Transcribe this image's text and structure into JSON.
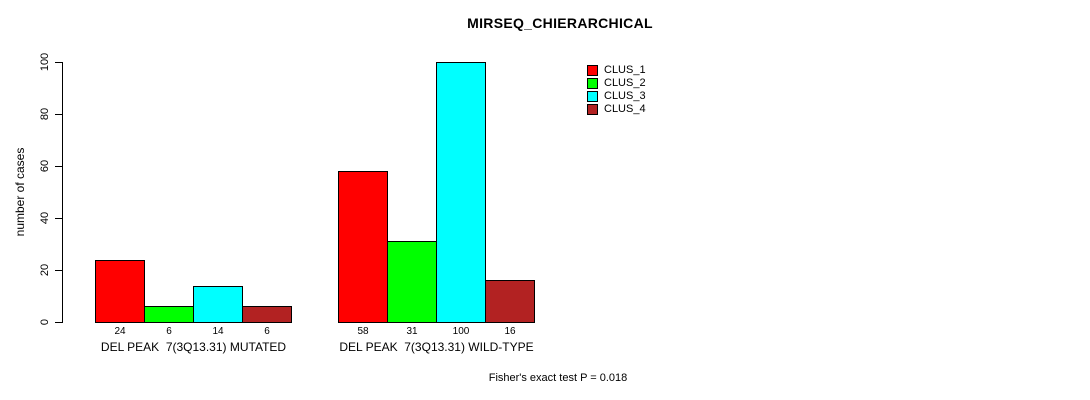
{
  "chart_data": {
    "type": "bar",
    "title": "MIRSEQ_CHIERARCHICAL",
    "ylabel": "number of cases",
    "xlabel": "",
    "ylim": [
      0,
      100
    ],
    "yticks": [
      0,
      20,
      40,
      60,
      80,
      100
    ],
    "grid": false,
    "legend_position": "top-right",
    "series": [
      {
        "name": "CLUS_1",
        "color": "#FF0000"
      },
      {
        "name": "CLUS_2",
        "color": "#00FF00"
      },
      {
        "name": "CLUS_3",
        "color": "#00FFFF"
      },
      {
        "name": "CLUS_4",
        "color": "#B22222"
      }
    ],
    "groups": [
      {
        "label": "DEL PEAK  7(3Q13.31) MUTATED",
        "values": [
          24,
          6,
          14,
          6
        ]
      },
      {
        "label": "DEL PEAK  7(3Q13.31) WILD-TYPE",
        "values": [
          58,
          31,
          100,
          16
        ]
      }
    ],
    "annotation": "Fisher's exact test P = 0.018"
  }
}
